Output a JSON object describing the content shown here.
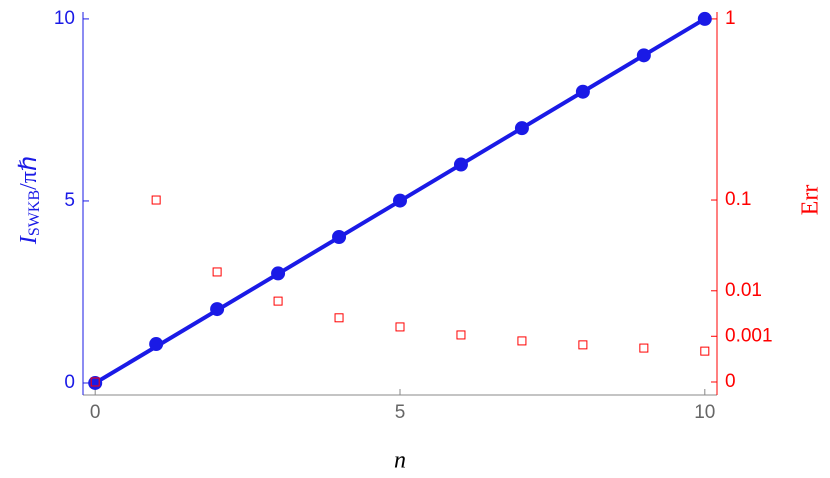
{
  "chart_data": {
    "type": "line",
    "xlabel": "n",
    "ylabel": "I",
    "ylabel_sub": "SWKB",
    "ylabel_rest": "/πℏ",
    "y2label": "Err",
    "xlim": [
      -0.2,
      10.2
    ],
    "xticks": [
      0,
      5,
      10
    ],
    "ylim": [
      -0.33,
      10.19
    ],
    "yticks": [
      0,
      5,
      10
    ],
    "y2lim": [
      0,
      1
    ],
    "y2ticks": [
      0,
      0.001,
      0.01,
      0.1,
      1
    ],
    "y2scale": "power",
    "y2power": 0.3,
    "y_color": "#1a1ae6",
    "y2_color": "#ff0000",
    "x_axis_color": "#888888",
    "series": [
      {
        "style": "line",
        "color": "#1a1ae6",
        "x": [
          0,
          10
        ],
        "values": [
          0,
          10
        ]
      },
      {
        "style": "points",
        "color": "#1a1ae6",
        "x": [
          0,
          1,
          2,
          3,
          4,
          5,
          6,
          7,
          8,
          9,
          10
        ],
        "values": [
          0,
          1.07,
          2.03,
          3.01,
          4.01,
          5.01,
          6.0,
          7.0,
          8.0,
          9.0,
          10.0
        ]
      },
      {
        "style": "squares",
        "color": "#ff0000",
        "axis": "y2",
        "x": [
          0,
          1,
          2,
          3,
          4,
          5,
          6,
          7,
          8,
          9,
          10
        ],
        "values": [
          0,
          0.1,
          0.0187,
          0.0067,
          0.0031,
          0.00186,
          0.0011,
          0.0007,
          0.0005,
          0.00037,
          0.00027
        ]
      }
    ]
  }
}
